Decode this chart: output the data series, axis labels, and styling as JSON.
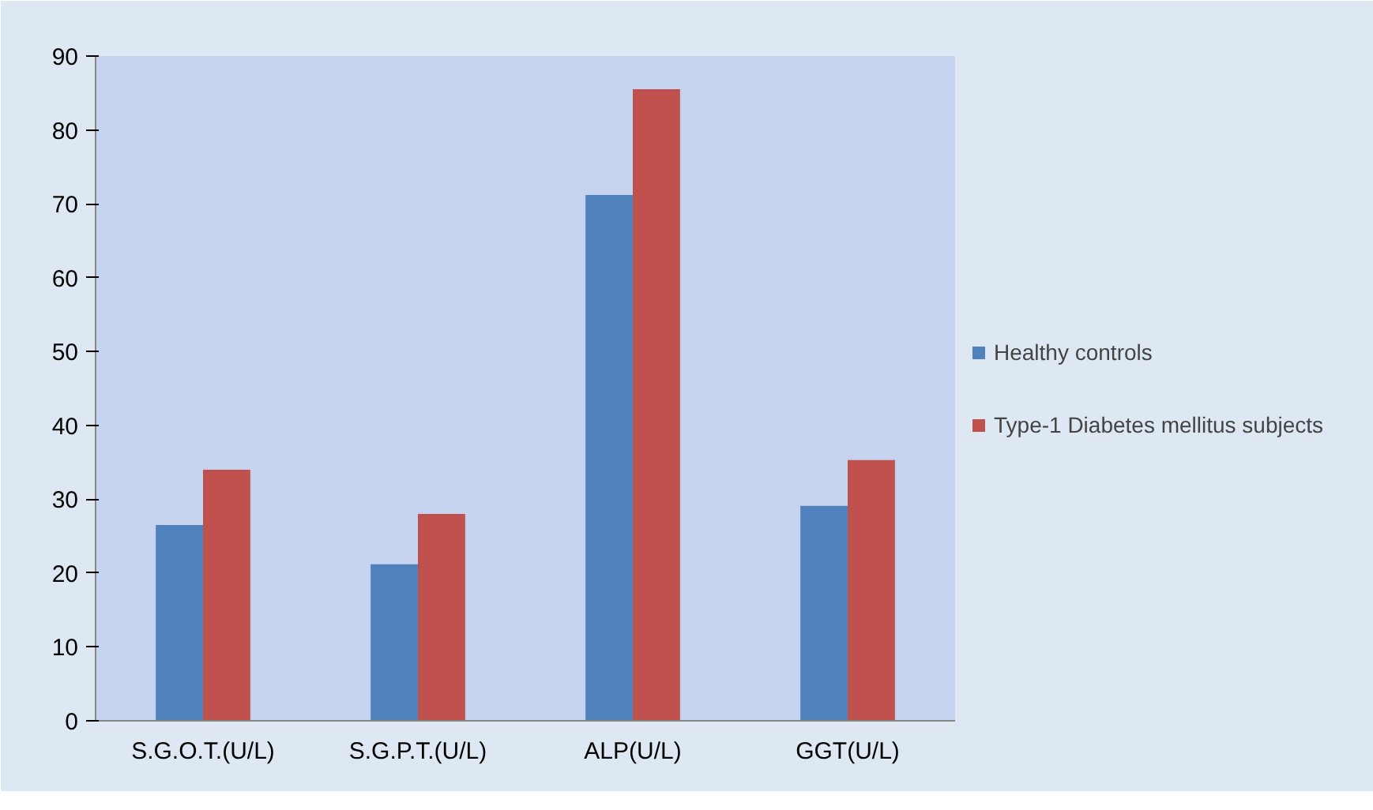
{
  "chart_data": {
    "type": "bar",
    "categories": [
      "S.G.O.T.(U/L)",
      "S.G.P.T.(U/L)",
      "ALP(U/L)",
      "GGT(U/L)"
    ],
    "series": [
      {
        "name": "Healthy controls",
        "color": "#4f81bd",
        "values": [
          26.5,
          21.2,
          71.2,
          29.1
        ]
      },
      {
        "name": "Type-1 Diabetes mellitus subjects",
        "color": "#c0504d",
        "values": [
          34.0,
          28.0,
          85.5,
          35.3
        ]
      }
    ],
    "ylim": [
      0,
      90
    ],
    "yticks": [
      0,
      10,
      20,
      30,
      40,
      50,
      60,
      70,
      80,
      90
    ],
    "grid": false,
    "legend": "right"
  }
}
